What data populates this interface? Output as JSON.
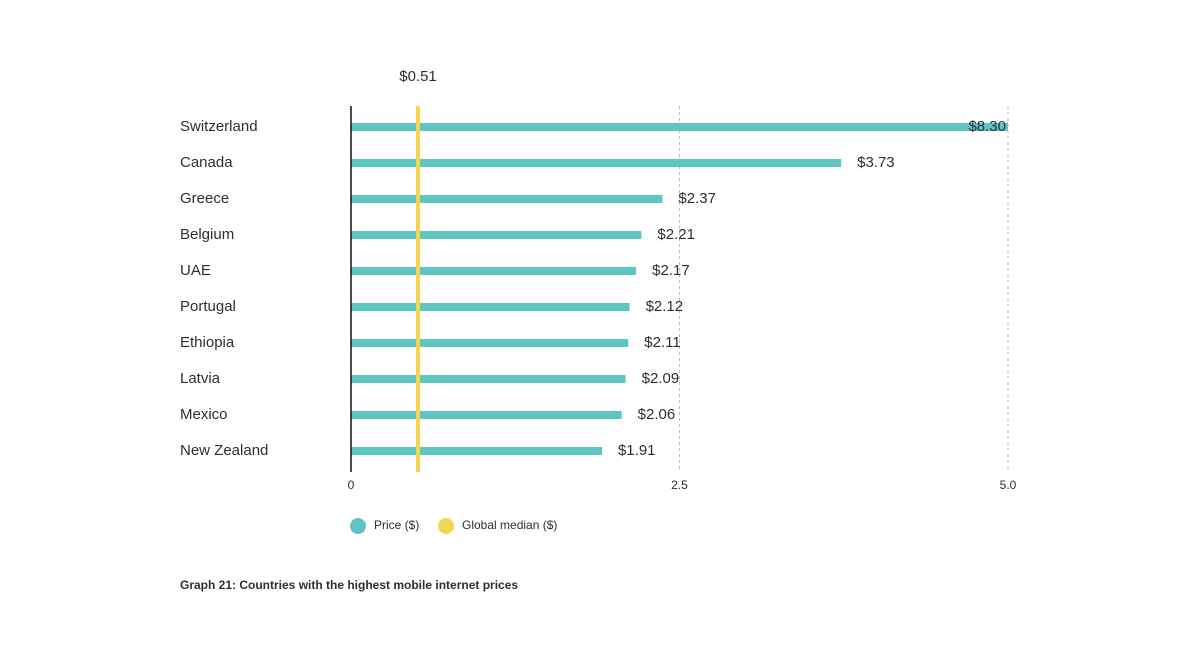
{
  "chart_data": {
    "type": "hbar",
    "caption": "Graph 21: Countries with the highest mobile internet prices",
    "categories": [
      "Switzerland",
      "Canada",
      "Greece",
      "Belgium",
      "UAE",
      "Portugal",
      "Ethiopia",
      "Latvia",
      "Mexico",
      "New Zealand"
    ],
    "series": [
      {
        "name": "Price ($)",
        "color": "#5ec5c3",
        "values": [
          8.3,
          3.73,
          2.37,
          2.21,
          2.17,
          2.12,
          2.11,
          2.09,
          2.06,
          1.91
        ],
        "value_labels": [
          "$8.30",
          "$3.73",
          "$2.37",
          "$2.21",
          "$2.17",
          "$2.12",
          "$2.11",
          "$2.09",
          "$2.06",
          "$1.91"
        ]
      }
    ],
    "reference_line": {
      "name": "Global median ($)",
      "value": 0.51,
      "label": "$0.51",
      "color": "#f5d451"
    },
    "xlim": [
      0,
      5
    ],
    "xticks": [
      0,
      2.5,
      {
        "value": 5,
        "label": "5.0"
      }
    ],
    "grid": true
  }
}
